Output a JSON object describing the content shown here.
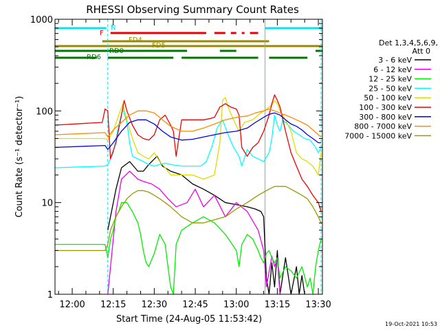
{
  "chart_data": {
    "type": "line",
    "title": "RHESSI Observing Summary Count Rates",
    "xlabel": "Start Time (24-Aug-05 11:53:42)",
    "ylabel": "Count Rate (s⁻¹ detector⁻¹)",
    "y_scale": "log",
    "ylim": [
      1,
      1000
    ],
    "xlim": [
      "11:53:42",
      "13:31:30"
    ],
    "x_ticks": [
      "12:00",
      "12:15",
      "12:30",
      "12:45",
      "13:00",
      "13:15",
      "13:30"
    ],
    "y_ticks": [
      "1",
      "10",
      "100",
      "1000"
    ],
    "grid": false,
    "legend_position": "right",
    "legend_header": [
      "Det 1,3,4,5,6,9,",
      "Att 0"
    ],
    "footer_text": "19-Oct-2021 10:53",
    "vertical_markers": [
      {
        "x": "12:13:00",
        "style": "dashed",
        "color": "#00e5ee"
      },
      {
        "x": "13:10:30",
        "style": "solid",
        "color": "#00e5ee"
      },
      {
        "x": "13:31:00",
        "style": "dashed",
        "color": "#00e5ee"
      }
    ],
    "flag_bars": [
      {
        "label": "N",
        "color": "#00e5ee",
        "segments": [
          [
            "11:53:42",
            "12:12:30"
          ],
          [
            "13:10:30",
            "13:31:30"
          ]
        ]
      },
      {
        "label": "F",
        "color": "#ee0000",
        "segments": [
          [
            "12:14:00",
            "12:49:00"
          ],
          [
            "12:52:00",
            "12:56:00"
          ],
          [
            "12:58:00",
            "13:00:00"
          ],
          [
            "13:02:00",
            "13:03:00"
          ],
          [
            "13:05:00",
            "13:08:00"
          ]
        ]
      },
      {
        "label": "FD4",
        "color": "#998800",
        "segments": [
          [
            "12:11:00",
            "13:12:00"
          ]
        ]
      },
      {
        "label": "FD5",
        "color": "#998800",
        "segments": [
          [
            "11:53:42",
            "13:31:30"
          ]
        ]
      },
      {
        "label": "RD0",
        "color": "#007700",
        "segments": [
          [
            "11:53:42",
            "12:42:00"
          ],
          [
            "12:54:00",
            "13:00:00"
          ],
          [
            "13:29:00",
            "13:31:30"
          ]
        ]
      },
      {
        "label": "RD6",
        "color": "#007700",
        "segments": [
          [
            "11:53:42",
            "12:09:00"
          ],
          [
            "12:13:00",
            "12:37:00"
          ],
          [
            "12:40:00",
            "13:08:00"
          ],
          [
            "13:12:00",
            "13:26:00"
          ]
        ]
      }
    ],
    "series": [
      {
        "name": "3 - 6 keV",
        "color": "#000000",
        "x": [
          "11:53:42",
          "12:12:30",
          "12:13:00",
          "12:16:00",
          "12:18:00",
          "12:21:00",
          "12:24:00",
          "12:26:00",
          "12:28:00",
          "12:31:00",
          "12:33:00",
          "12:36:00",
          "12:40:00",
          "12:44:00",
          "12:48:00",
          "12:52:00",
          "12:56:00",
          "13:00:00",
          "13:04:00",
          "13:07:00",
          "13:09:00",
          "13:10:00",
          "13:11:00",
          "13:12:00",
          "13:13:00",
          "13:14:00",
          "13:15:00",
          "13:16:00",
          "13:18:00",
          "13:20:00",
          "13:22:00",
          "13:23:00",
          "13:24:00",
          "13:25:00"
        ],
        "values": [
          null,
          null,
          5,
          14,
          24,
          28,
          22,
          22,
          26,
          32,
          25,
          22,
          20,
          16,
          14,
          12,
          10,
          9.5,
          9,
          8.5,
          8,
          7,
          1.5,
          0.8,
          2.2,
          1.2,
          3,
          0.9,
          2.5,
          1.0,
          2.0,
          0.9,
          1.6,
          0.8
        ]
      },
      {
        "name": "6 - 12 keV",
        "color": "#ee00ee",
        "x": [
          "12:13:00",
          "12:16:00",
          "12:18:00",
          "12:21:00",
          "12:24:00",
          "12:26:00",
          "12:29:00",
          "12:32:00",
          "12:35:00",
          "12:38:00",
          "12:42:00",
          "12:45:00",
          "12:48:00",
          "12:52:00",
          "12:56:00",
          "13:00:00",
          "13:04:00",
          "13:08:00",
          "13:10:00",
          "13:11:00",
          "13:13:00",
          "13:14:00",
          "13:15:00",
          "13:16:00"
        ],
        "values": [
          1.0,
          8,
          18,
          22,
          18,
          17,
          16,
          14,
          11,
          9,
          10,
          14,
          9,
          12,
          7,
          10,
          8,
          5,
          3,
          1.2,
          2.6,
          2.0,
          2.4,
          1.0
        ]
      },
      {
        "name": "12 - 25 keV",
        "color": "#00ee00",
        "x": [
          "11:53:42",
          "12:06:00",
          "12:10:00",
          "12:12:00",
          "12:13:00",
          "12:14:00",
          "12:15:00",
          "12:16:00",
          "12:17:00",
          "12:18:00",
          "12:20:00",
          "12:22:00",
          "12:24:00",
          "12:25:00",
          "12:26:00",
          "12:27:00",
          "12:28:00",
          "12:30:00",
          "12:32:00",
          "12:34:00",
          "12:35:00",
          "12:36:00",
          "12:37:00",
          "12:38:00",
          "12:40:00",
          "12:44:00",
          "12:48:00",
          "12:52:00",
          "12:56:00",
          "13:00:00",
          "13:01:00",
          "13:02:00",
          "13:04:00",
          "13:06:00",
          "13:08:00",
          "13:09:00",
          "13:10:00",
          "13:11:00",
          "13:12:00",
          "13:13:00",
          "13:14:00",
          "13:15:00",
          "13:16:00",
          "13:18:00",
          "13:20:00",
          "13:22:00",
          "13:24:00",
          "13:26:00",
          "13:27:00",
          "13:28:00",
          "13:29:00",
          "13:30:00",
          "13:31:00"
        ],
        "values": [
          3.5,
          3.5,
          3.5,
          3.5,
          2.5,
          4,
          5,
          7,
          8,
          10,
          10,
          8,
          6,
          4.5,
          3,
          2.2,
          2.0,
          2.8,
          4.5,
          3.5,
          2.0,
          1.2,
          1.0,
          3.5,
          5,
          6,
          7,
          6,
          4.5,
          3,
          2.0,
          3.5,
          4.5,
          4,
          3,
          2.5,
          2.2,
          2.8,
          3.0,
          2.5,
          2.2,
          2.5,
          1.5,
          2.0,
          1.8,
          1.5,
          2.0,
          1.2,
          1.5,
          1.0,
          2.0,
          3.0,
          4.0
        ]
      },
      {
        "name": "25 - 50 keV",
        "color": "#00ffff",
        "x": [
          "11:53:42",
          "12:12:00",
          "12:13:00",
          "12:15:00",
          "12:17:00",
          "12:18:30",
          "12:20:00",
          "12:21:00",
          "12:22:00",
          "12:24:00",
          "12:26:00",
          "12:28:00",
          "12:30:00",
          "12:32:00",
          "12:34:00",
          "12:36:00",
          "12:40:00",
          "12:44:00",
          "12:47:00",
          "12:49:00",
          "12:51:00",
          "12:53:00",
          "12:55:00",
          "12:57:00",
          "12:59:00",
          "13:01:00",
          "13:02:00",
          "13:04:00",
          "13:06:00",
          "13:08:00",
          "13:10:00",
          "13:12:00",
          "13:13:00",
          "13:14:00",
          "13:15:00",
          "13:16:00",
          "13:17:00",
          "13:19:00",
          "13:21:00",
          "13:23:00",
          "13:25:00",
          "13:27:00",
          "13:29:00",
          "13:30:00",
          "13:31:00"
        ],
        "values": [
          24,
          25,
          26,
          35,
          70,
          105,
          75,
          45,
          32,
          30,
          28,
          26,
          25,
          26,
          27,
          26,
          25,
          25,
          25,
          28,
          40,
          65,
          80,
          55,
          40,
          32,
          25,
          38,
          32,
          30,
          28,
          35,
          50,
          90,
          70,
          60,
          80,
          70,
          60,
          55,
          50,
          48,
          40,
          35,
          40
        ]
      },
      {
        "name": "50 - 100 keV",
        "color": "#dddd00",
        "x": [
          "11:53:42",
          "12:12:00",
          "12:13:00",
          "12:15:00",
          "12:17:00",
          "12:18:30",
          "12:20:00",
          "12:22:00",
          "12:24:00",
          "12:26:00",
          "12:28:00",
          "12:30:00",
          "12:32:00",
          "12:34:00",
          "12:36:00",
          "12:38:00",
          "12:40:00",
          "12:44:00",
          "12:48:00",
          "12:52:00",
          "12:54:00",
          "12:55:00",
          "12:56:00",
          "12:57:00",
          "12:59:00",
          "13:01:00",
          "13:03:00",
          "13:06:00",
          "13:08:00",
          "13:10:00",
          "13:12:00",
          "13:13:00",
          "13:14:00",
          "13:15:00",
          "13:16:00",
          "13:18:00",
          "13:20:00",
          "13:22:00",
          "13:24:00",
          "13:26:00",
          "13:28:00",
          "13:30:00",
          "13:31:00"
        ],
        "values": [
          50,
          50,
          48,
          60,
          90,
          120,
          80,
          50,
          35,
          32,
          30,
          35,
          28,
          24,
          20,
          20,
          20,
          20,
          18,
          20,
          45,
          130,
          140,
          110,
          80,
          60,
          75,
          80,
          90,
          100,
          110,
          115,
          130,
          120,
          100,
          80,
          60,
          35,
          30,
          28,
          25,
          20,
          35
        ]
      },
      {
        "name": "100 - 300 keV",
        "color": "#ee0000",
        "x": [
          "11:53:42",
          "12:11:00",
          "12:12:00",
          "12:13:00",
          "12:14:00",
          "12:16:00",
          "12:18:00",
          "12:19:00",
          "12:20:00",
          "12:22:00",
          "12:24:00",
          "12:26:00",
          "12:28:00",
          "12:30:00",
          "12:32:00",
          "12:34:00",
          "12:36:00",
          "12:37:00",
          "12:38:00",
          "12:40:00",
          "12:44:00",
          "12:48:00",
          "12:50:00",
          "12:52:00",
          "12:54:00",
          "12:56:00",
          "12:58:00",
          "13:00:00",
          "13:01:00",
          "13:02:00",
          "13:04:00",
          "13:06:00",
          "13:08:00",
          "13:10:00",
          "13:12:00",
          "13:13:00",
          "13:14:00",
          "13:15:00",
          "13:16:00",
          "13:18:00",
          "13:20:00",
          "13:22:00",
          "13:24:00",
          "13:26:00",
          "13:28:00",
          "13:30:00",
          "13:31:00"
        ],
        "values": [
          70,
          75,
          105,
          100,
          30,
          45,
          90,
          130,
          100,
          70,
          55,
          50,
          48,
          55,
          80,
          90,
          70,
          60,
          32,
          80,
          80,
          80,
          82,
          85,
          110,
          120,
          110,
          105,
          90,
          40,
          32,
          40,
          45,
          60,
          90,
          120,
          150,
          130,
          110,
          60,
          35,
          25,
          18,
          15,
          12,
          10,
          8
        ]
      },
      {
        "name": "300 - 800 keV",
        "color": "#0000ee",
        "x": [
          "11:53:42",
          "12:12:00",
          "12:13:00",
          "12:15:00",
          "12:18:00",
          "12:21:00",
          "12:24:00",
          "12:27:00",
          "12:30:00",
          "12:33:00",
          "12:36:00",
          "12:40:00",
          "12:44:00",
          "12:48:00",
          "12:52:00",
          "12:56:00",
          "13:00:00",
          "13:04:00",
          "13:07:00",
          "13:10:00",
          "13:12:00",
          "13:14:00",
          "13:16:00",
          "13:18:00",
          "13:20:00",
          "13:22:00",
          "13:24:00",
          "13:26:00",
          "13:28:00",
          "13:30:00",
          "13:31:00"
        ],
        "values": [
          40,
          42,
          38,
          45,
          60,
          75,
          80,
          80,
          72,
          60,
          52,
          48,
          49,
          52,
          55,
          58,
          60,
          65,
          75,
          85,
          92,
          95,
          90,
          80,
          72,
          68,
          62,
          55,
          50,
          45,
          45
        ]
      },
      {
        "name": "800 - 7000 keV",
        "color": "#ff8800",
        "x": [
          "11:53:42",
          "12:12:00",
          "12:13:00",
          "12:15:00",
          "12:18:00",
          "12:21:00",
          "12:24:00",
          "12:27:00",
          "12:30:00",
          "12:33:00",
          "12:36:00",
          "12:40:00",
          "12:44:00",
          "12:48:00",
          "12:52:00",
          "12:56:00",
          "13:00:00",
          "13:04:00",
          "13:07:00",
          "13:10:00",
          "13:12:00",
          "13:14:00",
          "13:16:00",
          "13:18:00",
          "13:20:00",
          "13:22:00",
          "13:24:00",
          "13:26:00",
          "13:28:00",
          "13:30:00",
          "13:31:00"
        ],
        "values": [
          55,
          58,
          52,
          62,
          75,
          90,
          100,
          100,
          95,
          80,
          68,
          60,
          60,
          65,
          72,
          80,
          85,
          88,
          95,
          100,
          105,
          100,
          95,
          90,
          85,
          80,
          75,
          70,
          62,
          55,
          52
        ]
      },
      {
        "name": "7000 - 15000 keV",
        "color": "#999900",
        "x": [
          "11:53:42",
          "12:10:00",
          "12:12:00",
          "12:13:00",
          "12:14:00",
          "12:16:00",
          "12:18:00",
          "12:20:00",
          "12:22:00",
          "12:24:00",
          "12:26:00",
          "12:28:00",
          "12:30:00",
          "12:32:00",
          "12:34:00",
          "12:36:00",
          "12:40:00",
          "12:44:00",
          "12:48:00",
          "12:52:00",
          "12:56:00",
          "13:00:00",
          "13:04:00",
          "13:08:00",
          "13:10:00",
          "13:12:00",
          "13:14:00",
          "13:16:00",
          "13:18:00",
          "13:20:00",
          "13:22:00",
          "13:24:00",
          "13:26:00",
          "13:28:00",
          "13:30:00",
          "13:31:00"
        ],
        "values": [
          3,
          3,
          3,
          3.5,
          5,
          7,
          9,
          11,
          12.5,
          13.5,
          13.5,
          13,
          12,
          11,
          10,
          9,
          7,
          6,
          6,
          6.5,
          7,
          8.5,
          10,
          12,
          13,
          14,
          15,
          15,
          15,
          14,
          13,
          12,
          11,
          9,
          7,
          6
        ]
      }
    ]
  }
}
